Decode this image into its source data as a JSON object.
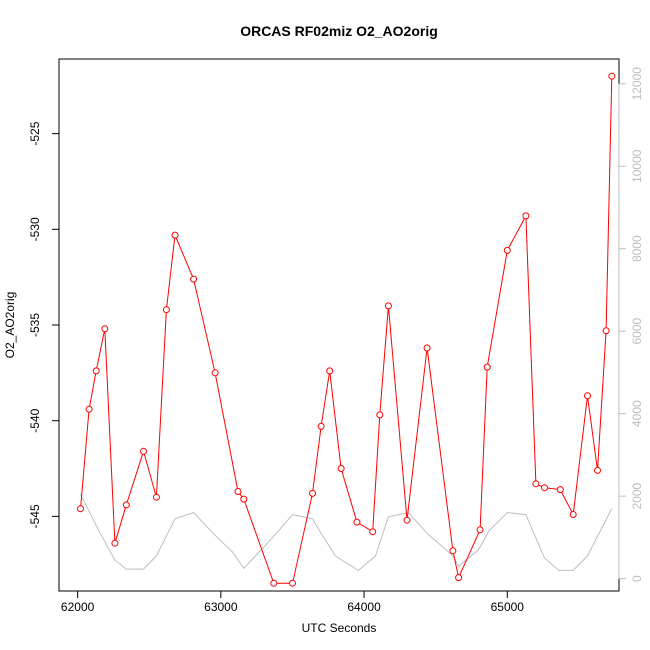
{
  "chart_data": {
    "type": "line",
    "title": "ORCAS RF02miz O2_AO2orig",
    "xlabel": "UTC Seconds",
    "ylabel": "O2_AO2orig",
    "xlim": [
      61870,
      65780
    ],
    "ylim": [
      -548.9,
      -521.1
    ],
    "y2lim": [
      -300,
      12600
    ],
    "x_ticks": [
      62000,
      63000,
      64000,
      65000
    ],
    "y_ticks": [
      -545,
      -540,
      -535,
      -530,
      -525
    ],
    "y2_ticks": [
      0,
      2000,
      4000,
      6000,
      8000,
      10000,
      12000
    ],
    "grid": false,
    "legend": "none",
    "colors": {
      "primary": "#ff0000",
      "secondary": "#bebebe",
      "frame": "#000000"
    },
    "series": [
      {
        "axis": "left",
        "style": "line+points",
        "x": [
          62020,
          62080,
          62130,
          62190,
          62260,
          62340,
          62460,
          62550,
          62620,
          62680,
          62810,
          62960,
          63120,
          63160,
          63370,
          63500,
          63640,
          63700,
          63760,
          63840,
          63950,
          64060,
          64110,
          64170,
          64300,
          64440,
          64620,
          64660,
          64810,
          64860,
          65000,
          65130,
          65200,
          65260,
          65370,
          65460,
          65560,
          65630,
          65690,
          65730
        ],
        "y": [
          -544.6,
          -539.4,
          -537.4,
          -535.2,
          -546.4,
          -544.4,
          -541.6,
          -544.0,
          -534.2,
          -530.3,
          -532.6,
          -537.5,
          -543.7,
          -544.1,
          -548.5,
          -548.5,
          -543.8,
          -540.3,
          -537.4,
          -542.5,
          -545.3,
          -545.8,
          -539.7,
          -534.0,
          -545.2,
          -536.2,
          -546.8,
          -548.2,
          -545.7,
          -537.2,
          -531.1,
          -529.3,
          -543.3,
          -543.5,
          -543.6,
          -544.9,
          -538.7,
          -542.6,
          -535.3,
          -522.0
        ]
      },
      {
        "axis": "right",
        "style": "line",
        "x": [
          62020,
          62150,
          62260,
          62340,
          62460,
          62550,
          62680,
          62810,
          62960,
          63080,
          63160,
          63350,
          63500,
          63640,
          63700,
          63800,
          63960,
          64080,
          64170,
          64310,
          64440,
          64620,
          64660,
          64800,
          64870,
          65000,
          65130,
          65260,
          65360,
          65460,
          65560,
          65730
        ],
        "y": [
          2050,
          1150,
          450,
          230,
          230,
          550,
          1450,
          1600,
          1050,
          650,
          250,
          950,
          1550,
          1450,
          1100,
          550,
          200,
          550,
          1500,
          1600,
          1100,
          550,
          300,
          700,
          1150,
          1600,
          1550,
          500,
          200,
          200,
          550,
          1700
        ]
      }
    ]
  }
}
